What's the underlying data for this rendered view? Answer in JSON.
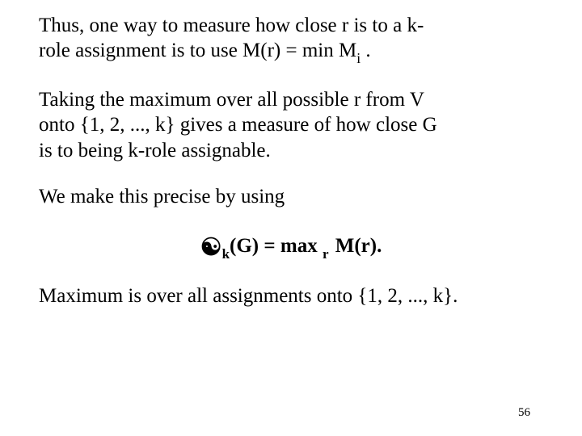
{
  "slide": {
    "background_color": "#ffffff",
    "text_color": "#000000",
    "font_family": "Times New Roman",
    "body_fontsize_pt": 25,
    "page_number": "56",
    "page_number_fontsize_pt": 15
  },
  "para1": {
    "l1": "Thus, one way to measure how close  r is to a k-",
    "l2": "role assignment is to use M(r) = min M",
    "sub": "i",
    "l3": " ."
  },
  "para2": {
    "l1": "Taking the maximum over all possible  r  from V",
    "l2": "onto  {1, 2, ..., k}  gives a measure of how close  G",
    "l3": "is to being  k-role assignable."
  },
  "para3": {
    "text": "We make this precise by using"
  },
  "formula": {
    "mu_symbol": "☯",
    "sub_k": "k",
    "mid": "(G) = max ",
    "sub_r": "r",
    "tail": " M(r).",
    "fontsize_pt": 25,
    "font_weight": "bold"
  },
  "para4": {
    "text": "Maximum is over all assignments onto {1, 2, ..., k}."
  }
}
